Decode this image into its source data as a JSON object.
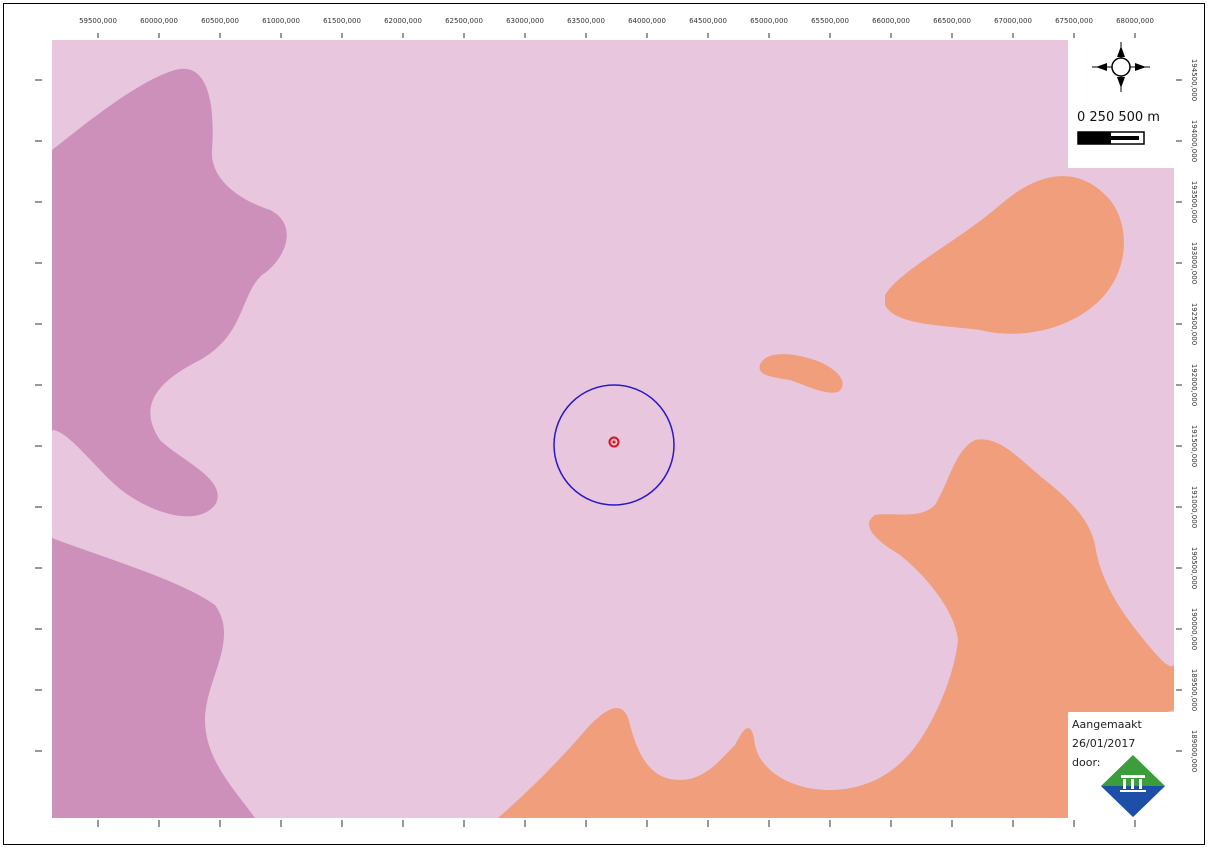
{
  "map": {
    "colors": {
      "background": "#e8c6de",
      "region_magenta": "#cc90bb",
      "region_orange": "#f09e7c",
      "buffer_circle": "#2a18c8",
      "point_marker": "#d9121b"
    },
    "x_axis_labels": [
      "59500,000",
      "60000,000",
      "60500,000",
      "61000,000",
      "61500,000",
      "62000,000",
      "62500,000",
      "63000,000",
      "63500,000",
      "64000,000",
      "64500,000",
      "65000,000",
      "65500,000",
      "66000,000",
      "66500,000",
      "67000,000",
      "67500,000",
      "68000,000"
    ],
    "y_axis_labels": [
      "194500,000",
      "194000,000",
      "193500,000",
      "193000,000",
      "192500,000",
      "192000,000",
      "191500,000",
      "191000,000",
      "190500,000",
      "190000,000",
      "189500,000",
      "189000,000"
    ]
  },
  "legend": {
    "north_arrow_icon": "north-arrow-icon",
    "scale_label": "0  250 500  m"
  },
  "credit": {
    "line1": "Aangemaakt",
    "line2": "26/01/2017",
    "line3": "door:",
    "logo_icon": "organization-logo-icon"
  }
}
